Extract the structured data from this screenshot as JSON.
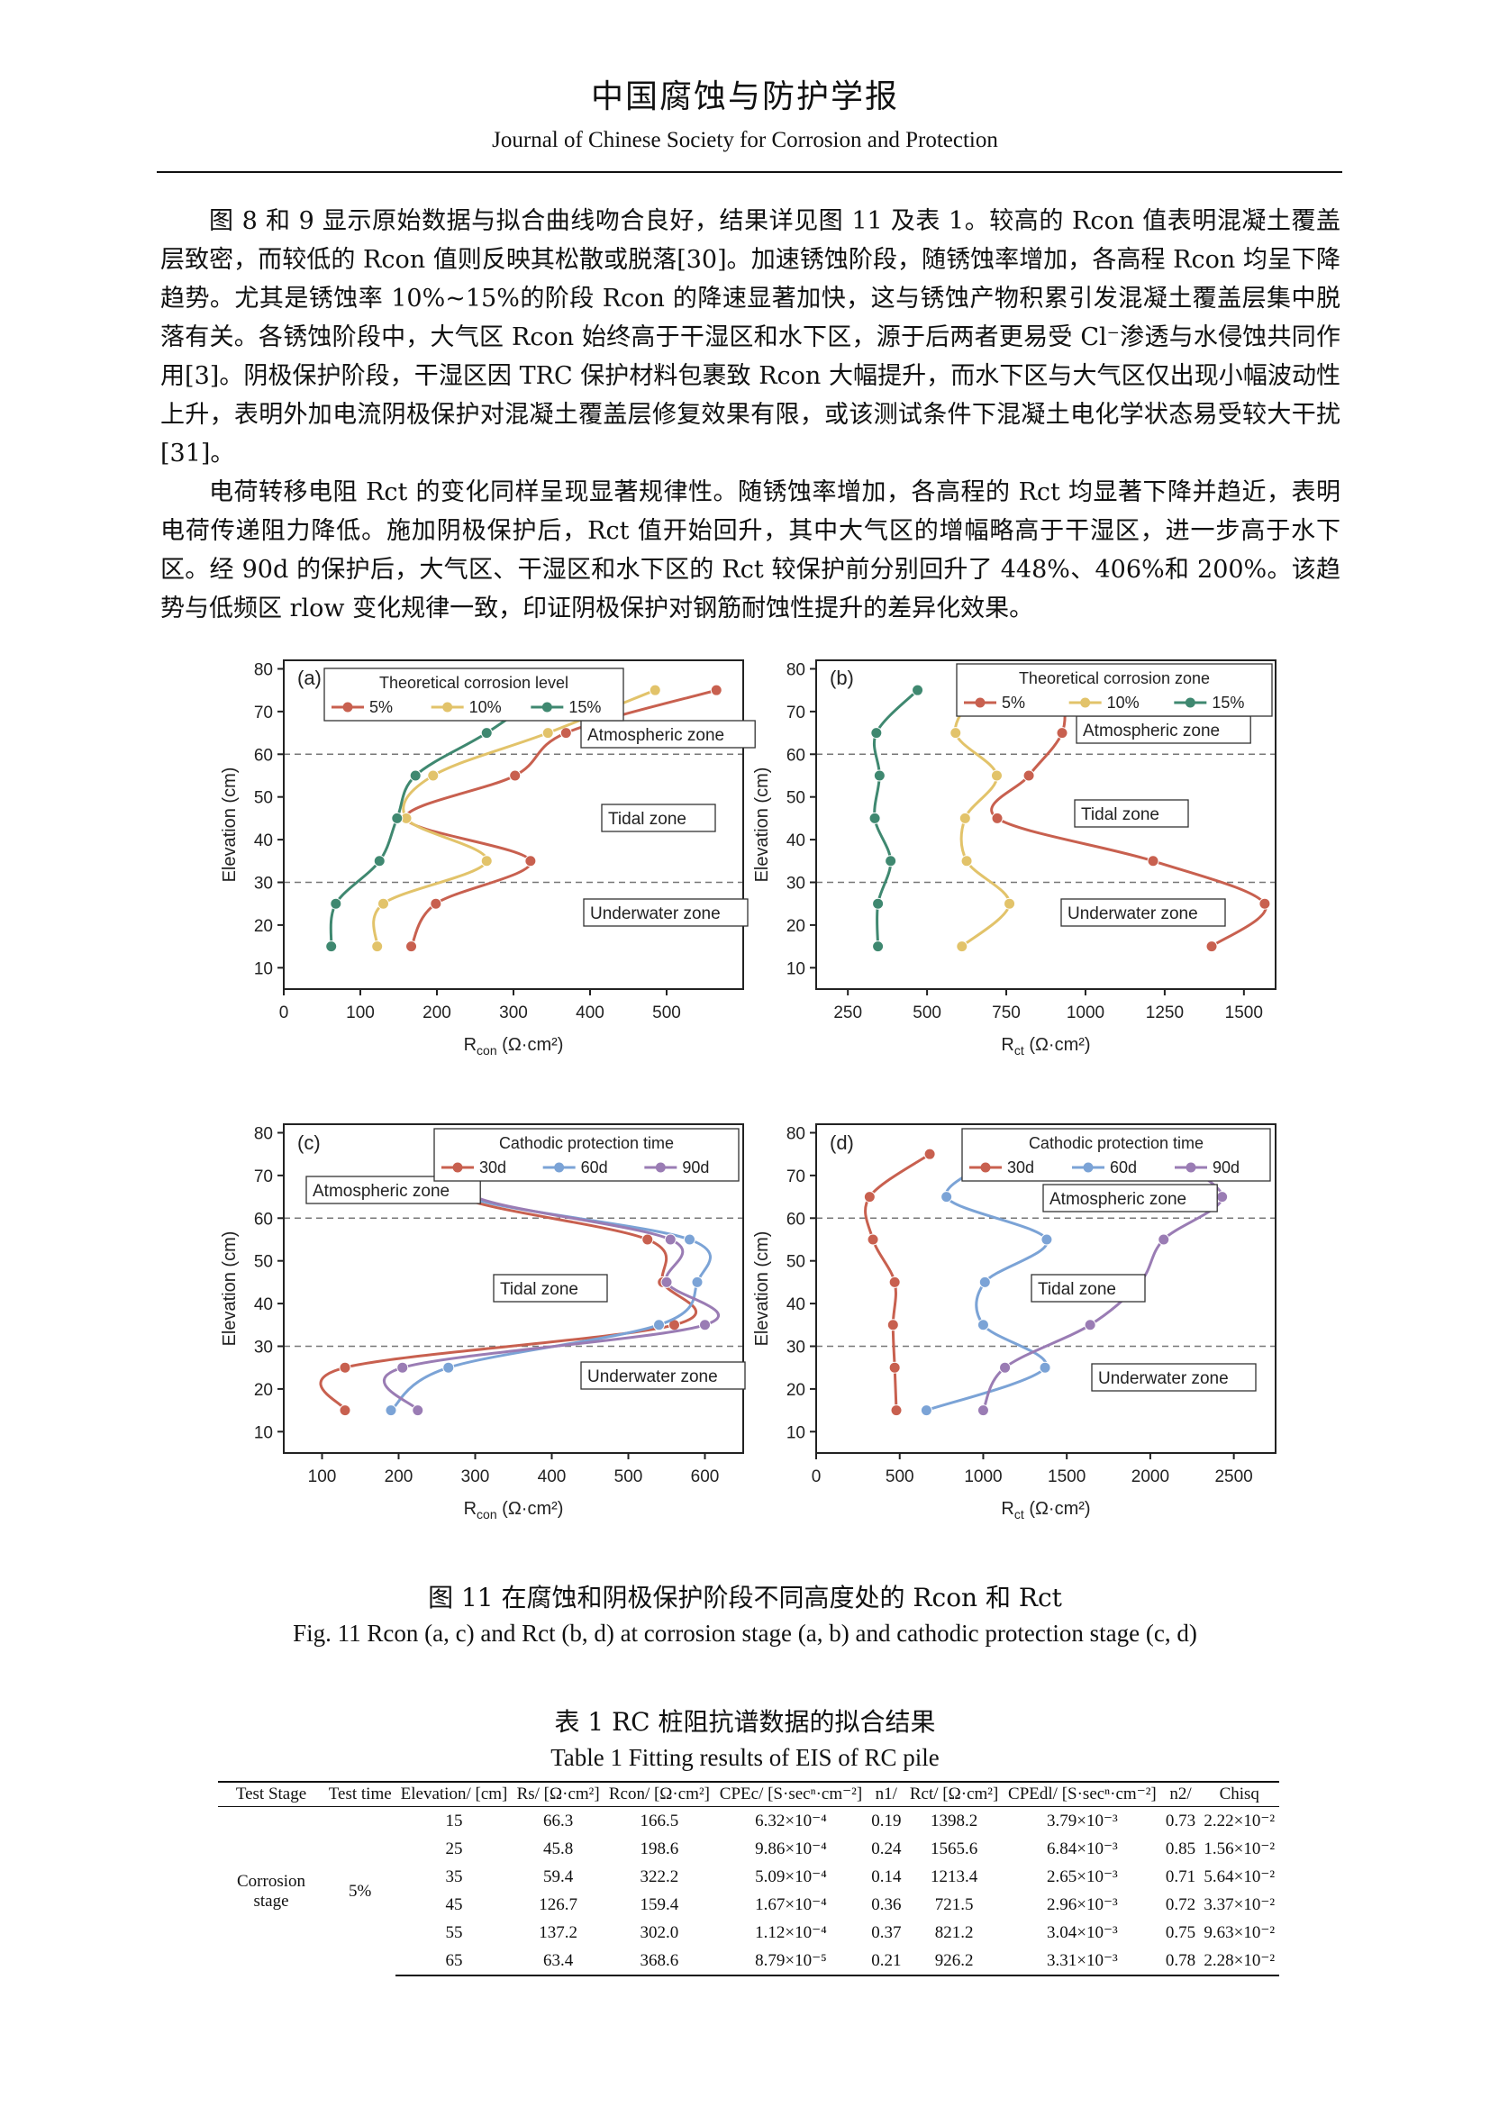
{
  "header": {
    "cn": "中国腐蚀与防护学报",
    "en": "Journal of Chinese Society for Corrosion and Protection"
  },
  "paragraphs": [
    "图 8 和 9 显示原始数据与拟合曲线吻合良好，结果详见图 11 及表 1。较高的 Rcon 值表明混凝土覆盖层致密，而较低的 Rcon 值则反映其松散或脱落[30]。加速锈蚀阶段，随锈蚀率增加，各高程 Rcon 均呈下降趋势。尤其是锈蚀率 10%~15%的阶段 Rcon 的降速显著加快，这与锈蚀产物积累引发混凝土覆盖层集中脱落有关。各锈蚀阶段中，大气区 Rcon 始终高于干湿区和水下区，源于后两者更易受 Cl⁻渗透与水侵蚀共同作用[3]。阴极保护阶段，干湿区因 TRC 保护材料包裹致 Rcon 大幅提升，而水下区与大气区仅出现小幅波动性上升，表明外加电流阴极保护对混凝土覆盖层修复效果有限，或该测试条件下混凝土电化学状态易受较大干扰[31]。",
    "电荷转移电阻 Rct 的变化同样呈现显著规律性。随锈蚀率增加，各高程的 Rct 均显著下降并趋近，表明电荷传递阻力降低。施加阴极保护后，Rct 值开始回升，其中大气区的增幅略高于干湿区，进一步高于水下区。经 90d 的保护后，大气区、干湿区和水下区的 Rct 较保护前分别回升了 448%、406%和 200%。该趋势与低频区 rlow 变化规律一致，印证阴极保护对钢筋耐蚀性提升的差异化效果。"
  ],
  "chart_data": [
    {
      "type": "scatter",
      "panel": "(a)",
      "xlabel": "Rcon (Ω·cm²)",
      "ylabel": "Elevation (cm)",
      "xlim": [
        0,
        600
      ],
      "ylim": [
        5,
        82
      ],
      "xticks": [
        0,
        100,
        200,
        300,
        400,
        500
      ],
      "yticks": [
        10,
        20,
        30,
        40,
        50,
        60,
        70,
        80
      ],
      "legend_title": "Theoretical corrosion level",
      "zones": [
        "Atmospheric zone",
        "Tidal zone",
        "Underwater zone"
      ],
      "series": [
        {
          "name": "5%",
          "color": "#c8604f",
          "points": [
            [
              166.5,
              15
            ],
            [
              198.6,
              25
            ],
            [
              322.2,
              35
            ],
            [
              159.4,
              45
            ],
            [
              302.0,
              55
            ],
            [
              368.6,
              65
            ],
            [
              565,
              75
            ]
          ]
        },
        {
          "name": "10%",
          "color": "#e2c36a",
          "points": [
            [
              122,
              15
            ],
            [
              130,
              25
            ],
            [
              265,
              35
            ],
            [
              160,
              45
            ],
            [
              195,
              55
            ],
            [
              345,
              65
            ],
            [
              485,
              75
            ]
          ]
        },
        {
          "name": "15%",
          "color": "#3f8870",
          "points": [
            [
              62,
              15
            ],
            [
              68,
              25
            ],
            [
              125,
              35
            ],
            [
              148,
              45
            ],
            [
              172,
              55
            ],
            [
              265,
              65
            ],
            [
              345,
              75
            ]
          ]
        }
      ]
    },
    {
      "type": "scatter",
      "panel": "(b)",
      "xlabel": "Rct (Ω·cm²)",
      "ylabel": "Elevation (cm)",
      "xlim": [
        150,
        1600
      ],
      "ylim": [
        5,
        82
      ],
      "xticks": [
        250,
        500,
        750,
        1000,
        1250,
        1500
      ],
      "yticks": [
        10,
        20,
        30,
        40,
        50,
        60,
        70,
        80
      ],
      "legend_title": "Theoretical corrosion zone",
      "zones": [
        "Atmospheric zone",
        "Tidal zone",
        "Underwater zone"
      ],
      "series": [
        {
          "name": "5%",
          "color": "#c8604f",
          "points": [
            [
              1398.2,
              15
            ],
            [
              1565.6,
              25
            ],
            [
              1213.4,
              35
            ],
            [
              721.5,
              45
            ],
            [
              821.2,
              55
            ],
            [
              926.2,
              65
            ],
            [
              930,
              75
            ]
          ]
        },
        {
          "name": "10%",
          "color": "#e2c36a",
          "points": [
            [
              610,
              15
            ],
            [
              760,
              25
            ],
            [
              625,
              35
            ],
            [
              620,
              45
            ],
            [
              720,
              55
            ],
            [
              590,
              65
            ],
            [
              660,
              75
            ]
          ]
        },
        {
          "name": "15%",
          "color": "#3f8870",
          "points": [
            [
              345,
              15
            ],
            [
              345,
              25
            ],
            [
              385,
              35
            ],
            [
              335,
              45
            ],
            [
              350,
              55
            ],
            [
              340,
              65
            ],
            [
              470,
              75
            ]
          ]
        }
      ]
    },
    {
      "type": "scatter",
      "panel": "(c)",
      "xlabel": "Rcon (Ω·cm²)",
      "ylabel": "Elevation (cm)",
      "xlim": [
        50,
        650
      ],
      "ylim": [
        5,
        82
      ],
      "xticks": [
        100,
        200,
        300,
        400,
        500,
        600
      ],
      "yticks": [
        10,
        20,
        30,
        40,
        50,
        60,
        70,
        80
      ],
      "legend_title": "Cathodic protection time",
      "zones": [
        "Atmospheric zone",
        "Tidal zone",
        "Underwater zone"
      ],
      "series": [
        {
          "name": "30d",
          "color": "#c8604f",
          "points": [
            [
              130,
              15
            ],
            [
              130,
              25
            ],
            [
              560,
              35
            ],
            [
              545,
              45
            ],
            [
              525,
              55
            ],
            [
              280,
              65
            ],
            [
              310,
              75
            ]
          ]
        },
        {
          "name": "60d",
          "color": "#7ba3d6",
          "points": [
            [
              190,
              15
            ],
            [
              265,
              25
            ],
            [
              540,
              35
            ],
            [
              590,
              45
            ],
            [
              580,
              55
            ],
            [
              290,
              65
            ],
            [
              310,
              75
            ]
          ]
        },
        {
          "name": "90d",
          "color": "#9a7cb4",
          "points": [
            [
              225,
              15
            ],
            [
              205,
              25
            ],
            [
              600,
              35
            ],
            [
              550,
              45
            ],
            [
              555,
              55
            ],
            [
              300,
              65
            ],
            [
              310,
              75
            ]
          ]
        }
      ]
    },
    {
      "type": "scatter",
      "panel": "(d)",
      "xlabel": "Rct (Ω·cm²)",
      "ylabel": "Elevation (cm)",
      "xlim": [
        0,
        2750
      ],
      "ylim": [
        5,
        82
      ],
      "xticks": [
        0,
        500,
        1000,
        1500,
        2000,
        2500
      ],
      "yticks": [
        10,
        20,
        30,
        40,
        50,
        60,
        70,
        80
      ],
      "legend_title": "Cathodic protection time",
      "zones": [
        "Atmospheric zone",
        "Tidal zone",
        "Underwater zone"
      ],
      "series": [
        {
          "name": "30d",
          "color": "#c8604f",
          "points": [
            [
              480,
              15
            ],
            [
              470,
              25
            ],
            [
              460,
              35
            ],
            [
              470,
              45
            ],
            [
              340,
              55
            ],
            [
              320,
              65
            ],
            [
              680,
              75
            ]
          ]
        },
        {
          "name": "60d",
          "color": "#7ba3d6",
          "points": [
            [
              660,
              15
            ],
            [
              1370,
              25
            ],
            [
              1000,
              35
            ],
            [
              1010,
              45
            ],
            [
              1380,
              55
            ],
            [
              780,
              65
            ],
            [
              1150,
              75
            ]
          ]
        },
        {
          "name": "90d",
          "color": "#9a7cb4",
          "points": [
            [
              1000,
              15
            ],
            [
              1130,
              25
            ],
            [
              1640,
              35
            ],
            [
              1940,
              45
            ],
            [
              2080,
              55
            ],
            [
              2430,
              65
            ],
            [
              2080,
              75
            ]
          ]
        }
      ]
    }
  ],
  "figure_caption": {
    "cn": "图 11 在腐蚀和阴极保护阶段不同高度处的 Rcon 和 Rct",
    "en": "Fig. 11 Rcon (a, c) and Rct (b, d) at corrosion stage (a, b) and cathodic protection stage (c, d)"
  },
  "table_caption": {
    "cn": "表 1 RC 桩阻抗谱数据的拟合结果",
    "en": "Table 1 Fitting results of EIS of RC pile"
  },
  "table": {
    "headers": [
      "Test Stage",
      "Test time",
      "Elevation/ [cm]",
      "Rs/ [Ω·cm²]",
      "Rcon/ [Ω·cm²]",
      "CPEc/ [S·secⁿ·cm⁻²]",
      "n1/",
      "Rct/ [Ω·cm²]",
      "CPEdl/ [S·secⁿ·cm⁻²]",
      "n2/",
      "Chisq"
    ],
    "stage": "Corrosion stage",
    "time": "5%",
    "rows": [
      [
        "15",
        "66.3",
        "166.5",
        "6.32×10⁻⁴",
        "0.19",
        "1398.2",
        "3.79×10⁻³",
        "0.73",
        "2.22×10⁻²"
      ],
      [
        "25",
        "45.8",
        "198.6",
        "9.86×10⁻⁴",
        "0.24",
        "1565.6",
        "6.84×10⁻³",
        "0.85",
        "1.56×10⁻²"
      ],
      [
        "35",
        "59.4",
        "322.2",
        "5.09×10⁻⁴",
        "0.14",
        "1213.4",
        "2.65×10⁻³",
        "0.71",
        "5.64×10⁻²"
      ],
      [
        "45",
        "126.7",
        "159.4",
        "1.67×10⁻⁴",
        "0.36",
        "721.5",
        "2.96×10⁻³",
        "0.72",
        "3.37×10⁻²"
      ],
      [
        "55",
        "137.2",
        "302.0",
        "1.12×10⁻⁴",
        "0.37",
        "821.2",
        "3.04×10⁻³",
        "0.75",
        "9.63×10⁻²"
      ],
      [
        "65",
        "63.4",
        "368.6",
        "8.79×10⁻⁵",
        "0.21",
        "926.2",
        "3.31×10⁻³",
        "0.78",
        "2.28×10⁻²"
      ]
    ]
  }
}
